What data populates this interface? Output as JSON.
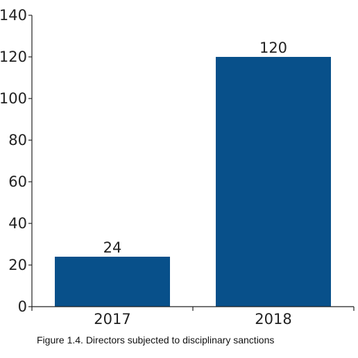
{
  "chart_data": {
    "type": "bar",
    "categories": [
      "2017",
      "2018"
    ],
    "values": [
      24,
      120
    ],
    "data_labels": [
      "24",
      "120"
    ],
    "title": "",
    "xlabel": "",
    "ylabel": "",
    "ylim": [
      0,
      140
    ],
    "yticks": [
      0,
      20,
      40,
      60,
      80,
      100,
      120,
      140
    ],
    "grid": false,
    "legend": "none",
    "bar_color": "#08508a",
    "caption": "Figure 1.4.  Directors subjected to disciplinary sanctions"
  }
}
